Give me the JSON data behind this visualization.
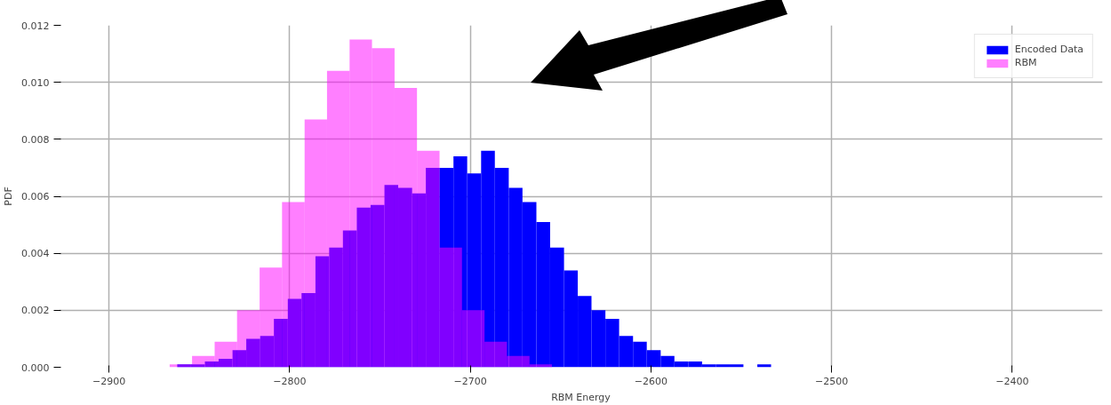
{
  "chart_data": {
    "type": "histogram",
    "xlabel": "RBM Energy",
    "ylabel": "PDF",
    "xlim": [
      -2927.6,
      -2350
    ],
    "xticks": [
      {
        "value": -2900,
        "label": "−2900"
      },
      {
        "value": -2800,
        "label": "−2800"
      },
      {
        "value": -2700,
        "label": "−2700"
      },
      {
        "value": -2600,
        "label": "−2600"
      },
      {
        "value": -2500,
        "label": "−2500"
      },
      {
        "value": -2400,
        "label": "−2400"
      }
    ],
    "ylim": [
      0,
      0.012
    ],
    "yticks": [
      {
        "value": 0,
        "label": "0.000"
      },
      {
        "value": 0.002,
        "label": "0.002"
      },
      {
        "value": 0.004,
        "label": "0.004"
      },
      {
        "value": 0.006,
        "label": "0.006"
      },
      {
        "value": 0.008,
        "label": "0.008"
      },
      {
        "value": 0.01,
        "label": "0.010"
      },
      {
        "value": 0.012,
        "label": "0.012"
      }
    ],
    "grid": true,
    "legend": "top right",
    "bins": [
      -2862.2,
      -2854.6,
      -2846.9,
      -2839.3,
      -2831.6,
      -2824.0,
      -2816.3,
      -2808.7,
      -2801.0,
      -2793.4,
      -2785.7,
      -2778.1,
      -2770.5,
      -2762.8,
      -2755.2,
      -2747.5,
      -2739.9,
      -2732.2,
      -2724.6,
      -2716.9,
      -2709.3,
      -2701.7,
      -2694.0,
      -2686.4,
      -2678.7,
      -2671.1,
      -2663.4,
      -2655.8,
      -2648.1,
      -2640.5,
      -2632.9,
      -2625.2,
      -2617.6,
      -2609.9,
      -2602.3,
      -2594.6,
      -2587.0,
      -2579.3,
      -2571.7,
      -2564.1,
      -2556.4,
      -2548.8,
      -2541.1,
      -2533.5
    ],
    "series": [
      {
        "name": "Encoded Data",
        "color": "#0000ff",
        "values": [
          0.0001,
          0.0001,
          0.0002,
          0.0003,
          0.0006,
          0.001,
          0.0011,
          0.0017,
          0.0024,
          0.0026,
          0.0039,
          0.0042,
          0.0048,
          0.0056,
          0.0057,
          0.0064,
          0.0063,
          0.0061,
          0.007,
          0.007,
          0.0074,
          0.0068,
          0.0076,
          0.007,
          0.0063,
          0.0058,
          0.0051,
          0.0042,
          0.0034,
          0.0025,
          0.002,
          0.0017,
          0.0011,
          0.0009,
          0.0006,
          0.0004,
          0.0002,
          0.0002,
          0.0001,
          0.0001,
          0.0001,
          0,
          0.0001
        ]
      },
      {
        "name": "RBM",
        "color": "#ff00ff",
        "type": "histogram",
        "bins": [
          -2866.4,
          -2854.0,
          -2841.5,
          -2829.1,
          -2816.6,
          -2804.2,
          -2791.7,
          -2779.3,
          -2766.8,
          -2754.4,
          -2741.9,
          -2729.5,
          -2717.0,
          -2704.6,
          -2692.1,
          -2679.7,
          -2667.2,
          -2654.8
        ],
        "values": [
          0.0001,
          0.0004,
          0.0009,
          0.002,
          0.0035,
          0.0058,
          0.0087,
          0.0104,
          0.0115,
          0.0112,
          0.0098,
          0.0076,
          0.0042,
          0.002,
          0.0009,
          0.0004,
          0.0001
        ]
      }
    ]
  }
}
